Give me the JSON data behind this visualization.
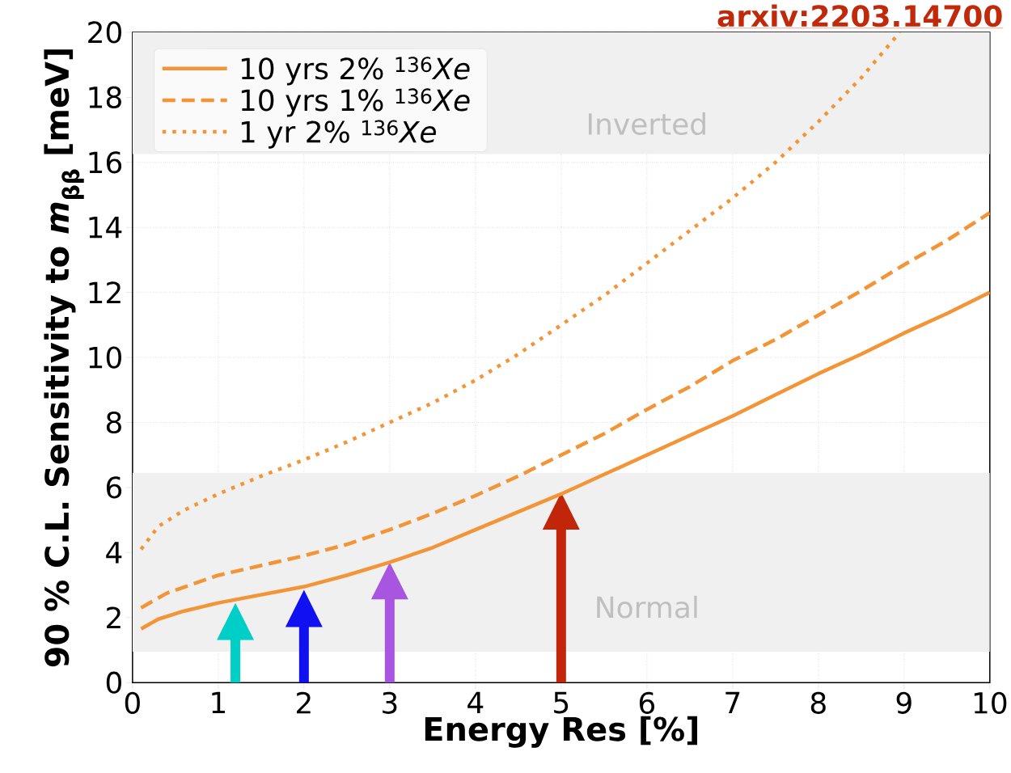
{
  "chart_data": {
    "type": "line",
    "xlabel": "Energy Res [%]",
    "ylabel": "90 % C.L. Sensitivity to *m*$_{ββ}$ [meV]",
    "xlim": [
      0,
      10
    ],
    "ylim": [
      0,
      20
    ],
    "xticks": [
      0,
      1,
      2,
      3,
      4,
      5,
      6,
      7,
      8,
      9,
      10
    ],
    "yticks": [
      0,
      2,
      4,
      6,
      8,
      10,
      12,
      14,
      16,
      18,
      20
    ],
    "grid": true,
    "legend": "top left",
    "series": [
      {
        "name": "10 yrs 2% $^{136}$*Xe*",
        "color": "#f39437",
        "line_style": "solid",
        "x": [
          0.1,
          0.3,
          0.6,
          1,
          1.5,
          2,
          2.5,
          3,
          3.5,
          4,
          4.5,
          5,
          5.5,
          6,
          6.5,
          7,
          7.5,
          8,
          8.5,
          9,
          9.5,
          10
        ],
        "values": [
          1.65,
          1.95,
          2.2,
          2.45,
          2.7,
          2.95,
          3.3,
          3.7,
          4.15,
          4.7,
          5.25,
          5.8,
          6.4,
          7.0,
          7.6,
          8.2,
          8.85,
          9.5,
          10.1,
          10.75,
          11.35,
          12.0
        ]
      },
      {
        "name": "10 yrs 1% $^{136}$*Xe*",
        "color": "#f39437",
        "line_style": "dashed",
        "x": [
          0.1,
          0.4,
          1,
          1.5,
          2,
          2.5,
          3,
          3.5,
          4,
          4.5,
          5,
          5.5,
          6,
          6.5,
          7,
          7.5,
          8,
          8.5,
          9,
          9.5,
          10
        ],
        "values": [
          2.3,
          2.75,
          3.3,
          3.6,
          3.9,
          4.25,
          4.7,
          5.2,
          5.75,
          6.35,
          7.0,
          7.65,
          8.4,
          9.1,
          9.9,
          10.55,
          11.3,
          12.05,
          12.85,
          13.6,
          14.45
        ]
      },
      {
        "name": "1  yr  2% $^{136}$*Xe*",
        "color": "#f39437",
        "line_style": "dotted",
        "x": [
          0.1,
          0.3,
          0.6,
          1,
          1.5,
          2,
          2.5,
          3,
          3.5,
          4,
          4.5,
          5,
          5.5,
          6,
          6.5,
          7,
          7.5,
          8,
          8.5,
          8.95
        ],
        "values": [
          4.1,
          4.8,
          5.3,
          5.8,
          6.35,
          6.85,
          7.4,
          8.0,
          8.6,
          9.3,
          10.1,
          11.0,
          11.9,
          12.9,
          13.9,
          14.9,
          16.0,
          17.25,
          18.6,
          20
        ]
      }
    ],
    "bands": [
      {
        "axis": "y",
        "from": 16.25,
        "to": 20,
        "label": "Inverted",
        "color": "#f0f0f0"
      },
      {
        "axis": "y",
        "from": 0.95,
        "to": 6.45,
        "label": "Normal",
        "color": "#f0f0f0"
      }
    ],
    "annotations": [
      "arxiv:2203.14700"
    ]
  }
}
